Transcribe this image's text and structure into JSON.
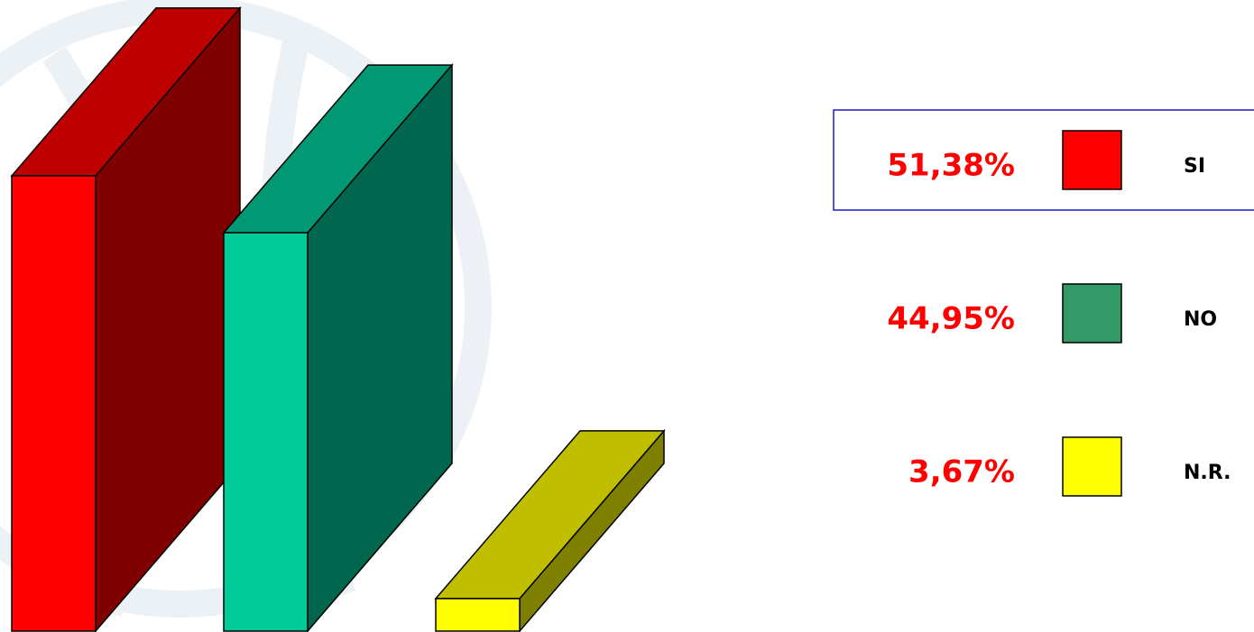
{
  "chart_data": {
    "type": "bar3d",
    "categories": [
      "SI",
      "NO",
      "N.R."
    ],
    "values": [
      51.38,
      44.95,
      3.67
    ],
    "value_labels": [
      "51,38%",
      "44,95%",
      "3,67%"
    ],
    "colors": [
      "#ff0000",
      "#00cc99",
      "#ffff00"
    ],
    "legend_colors": [
      "#ff0000",
      "#339966",
      "#ffff00"
    ]
  }
}
